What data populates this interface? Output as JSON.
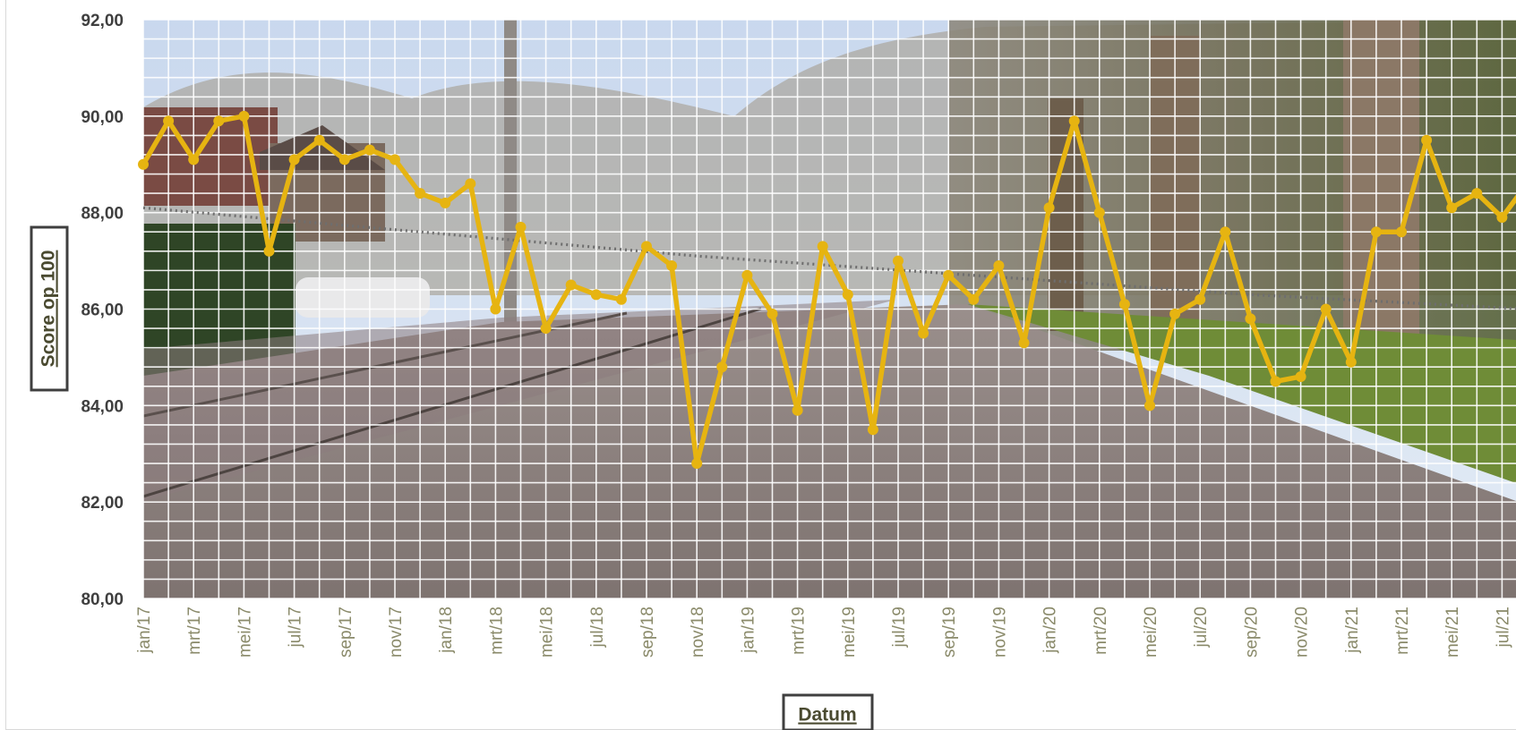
{
  "chart_data": {
    "type": "line",
    "xlabel": "Datum",
    "ylabel": "Score op 100",
    "ylim": [
      80,
      92
    ],
    "yticks": [
      "80,00",
      "82,00",
      "84,00",
      "86,00",
      "88,00",
      "90,00",
      "92,00"
    ],
    "ytick_values": [
      80,
      82,
      84,
      86,
      88,
      90,
      92
    ],
    "grid": true,
    "background": "photograph of a tree-lined street",
    "x_tick_labels": [
      "jan/17",
      "mrt/17",
      "mei/17",
      "jul/17",
      "sep/17",
      "nov/17",
      "jan/18",
      "mrt/18",
      "mei/18",
      "jul/18",
      "sep/18",
      "nov/18",
      "jan/19",
      "mrt/19",
      "mei/19",
      "jul/19",
      "sep/19",
      "nov/19",
      "jan/20",
      "mrt/20",
      "mei/20",
      "jul/20",
      "sep/20",
      "nov/20",
      "jan/21",
      "mrt/21",
      "mei/21",
      "jul/21"
    ],
    "series": [
      {
        "color": "#e6b411",
        "values": [
          89.0,
          89.9,
          89.1,
          89.9,
          90.0,
          87.2,
          89.1,
          89.5,
          89.1,
          89.3,
          89.1,
          88.4,
          88.2,
          88.6,
          86.0,
          87.7,
          85.6,
          86.5,
          86.3,
          86.2,
          87.3,
          86.9,
          82.8,
          84.8,
          86.7,
          85.9,
          83.9,
          87.3,
          86.3,
          83.5,
          87.0,
          85.5,
          86.7,
          86.2,
          86.9,
          85.3,
          88.1,
          89.9,
          88.0,
          86.1,
          84.0,
          85.9,
          86.2,
          87.6,
          85.8,
          84.5,
          84.6,
          86.0,
          84.9,
          87.6,
          87.6,
          89.5,
          88.1,
          88.4,
          87.9,
          88.6
        ]
      },
      {
        "style": "dotted trend",
        "color": "#6e6e6e",
        "values": [
          88.1,
          87.6,
          87.1,
          86.7,
          86.3,
          86.0
        ]
      }
    ]
  }
}
